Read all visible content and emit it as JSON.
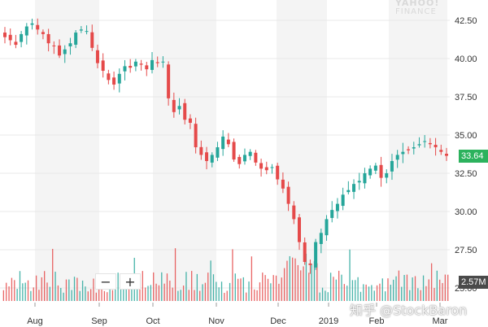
{
  "watermark_brand": {
    "line1": "YAHOO!",
    "line2": "FINANCE"
  },
  "zoom_controls": {
    "minus": "−",
    "plus": "+"
  },
  "last_price_badge": "33.64",
  "volume_badge": "2.57M",
  "footer_watermark": "知乎 @StockBaron",
  "colors": {
    "up": "#26a69a",
    "down": "#e54a4a",
    "badge_price": "#2cb25d",
    "badge_volume": "#4a4a4a",
    "shade": "#f4f4f4",
    "grid": "#e9e9e9"
  },
  "chart_data": {
    "type": "candlestick",
    "y_axis": {
      "side": "right",
      "min": 25.0,
      "max": 42.5,
      "ticks": [
        42.5,
        40.0,
        37.5,
        35.0,
        32.5,
        30.0,
        27.5,
        25.0
      ],
      "tick_labels": [
        "42.50",
        "40.00",
        "37.50",
        "35.00",
        "32.50",
        "30.00",
        "27.50",
        "25.00"
      ]
    },
    "x_axis": {
      "tick_labels": [
        "Aug",
        "Sep",
        "Oct",
        "Nov",
        "Dec",
        "2019",
        "Feb",
        "Mar"
      ]
    },
    "grid": true,
    "close_series_approx": [
      41.4,
      41.2,
      40.9,
      41.6,
      42.1,
      42.3,
      41.9,
      41.6,
      41.0,
      40.8,
      40.2,
      40.6,
      41.0,
      41.7,
      41.9,
      41.8,
      40.7,
      39.7,
      39.2,
      38.6,
      38.3,
      39.0,
      39.5,
      39.4,
      39.8,
      39.6,
      39.3,
      39.9,
      39.7,
      39.8,
      37.4,
      36.5,
      36.9,
      36.0,
      35.8,
      34.2,
      33.7,
      33.3,
      33.7,
      34.2,
      34.9,
      34.4,
      33.4,
      33.1,
      33.7,
      33.9,
      33.2,
      32.8,
      32.7,
      32.9,
      32.1,
      31.5,
      30.5,
      29.5,
      28.0,
      26.7,
      26.5,
      28.0,
      28.6,
      29.5,
      30.1,
      30.5,
      31.1,
      31.4,
      31.8,
      32.0,
      32.5,
      32.8,
      33.0,
      32.2,
      32.5,
      33.3,
      33.7,
      33.9,
      34.0,
      34.2,
      34.4,
      34.6,
      34.4,
      34.2,
      33.9,
      33.64
    ],
    "volume_last": "2.57M"
  }
}
